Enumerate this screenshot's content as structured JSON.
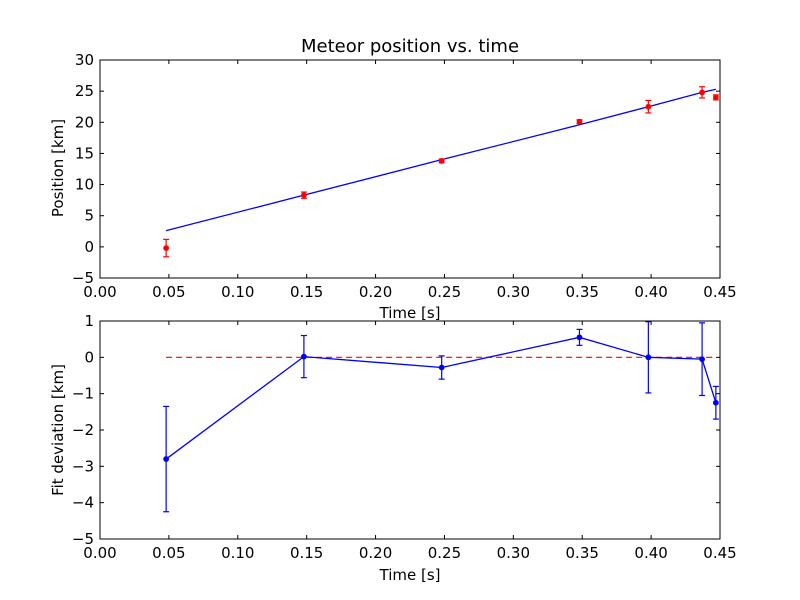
{
  "colors": {
    "line": "#0000ff",
    "marker_top": "#ff0000",
    "zero_line": "#ff0000",
    "axes": "#000000",
    "background": "#ffffff"
  },
  "chart_data": [
    {
      "type": "line",
      "title": "Meteor position vs. time",
      "xlabel": "Time [s]",
      "ylabel": "Position [km]",
      "xlim": [
        0.0,
        0.45
      ],
      "ylim": [
        -5,
        30
      ],
      "xticks": [
        0.0,
        0.05,
        0.1,
        0.15,
        0.2,
        0.25,
        0.3,
        0.35,
        0.4,
        0.45
      ],
      "xtick_labels": [
        "0.00",
        "0.05",
        "0.10",
        "0.15",
        "0.20",
        "0.25",
        "0.30",
        "0.35",
        "0.40",
        "0.45"
      ],
      "yticks": [
        -5,
        0,
        5,
        10,
        15,
        20,
        25,
        30
      ],
      "ytick_labels": [
        "−5",
        "0",
        "5",
        "10",
        "15",
        "20",
        "25",
        "30"
      ],
      "grid": false,
      "series": [
        {
          "kind": "errorbar-points",
          "x": [
            0.048,
            0.148,
            0.248,
            0.348,
            0.398,
            0.437,
            0.447
          ],
          "y": [
            -0.2,
            8.3,
            13.8,
            20.1,
            22.5,
            24.8,
            24.0
          ],
          "yerr": [
            1.4,
            0.5,
            0.3,
            0.3,
            1.0,
            0.9,
            0.4
          ]
        },
        {
          "kind": "fit-line",
          "x": [
            0.048,
            0.148,
            0.248,
            0.348,
            0.398,
            0.437,
            0.447
          ],
          "y": [
            2.6,
            8.3,
            14.0,
            19.6,
            22.5,
            24.8,
            25.3
          ]
        }
      ]
    },
    {
      "type": "line",
      "title": "",
      "xlabel": "Time [s]",
      "ylabel": "Fit deviation [km]",
      "xlim": [
        0.0,
        0.45
      ],
      "ylim": [
        -5,
        1
      ],
      "xticks": [
        0.0,
        0.05,
        0.1,
        0.15,
        0.2,
        0.25,
        0.3,
        0.35,
        0.4,
        0.45
      ],
      "xtick_labels": [
        "0.00",
        "0.05",
        "0.10",
        "0.15",
        "0.20",
        "0.25",
        "0.30",
        "0.35",
        "0.40",
        "0.45"
      ],
      "yticks": [
        -5,
        -4,
        -3,
        -2,
        -1,
        0,
        1
      ],
      "ytick_labels": [
        "−5",
        "−4",
        "−3",
        "−2",
        "−1",
        "0",
        "1"
      ],
      "grid": false,
      "series": [
        {
          "kind": "errorbar-line",
          "x": [
            0.048,
            0.148,
            0.248,
            0.348,
            0.398,
            0.437,
            0.447
          ],
          "y": [
            -2.8,
            0.02,
            -0.28,
            0.55,
            0.0,
            -0.05,
            -1.25
          ],
          "yerr": [
            1.45,
            0.58,
            0.32,
            0.22,
            0.98,
            1.0,
            0.45
          ]
        },
        {
          "kind": "zero-line",
          "x": [
            0.048,
            0.447
          ],
          "y": [
            0,
            0
          ]
        }
      ]
    }
  ]
}
